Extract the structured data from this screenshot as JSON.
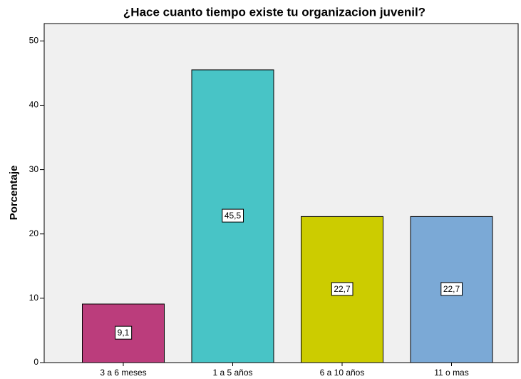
{
  "chart_data": {
    "type": "bar",
    "title": "¿Hace cuanto tiempo existe tu organizacion juvenil?",
    "y_label": "Porcentaje",
    "categories": [
      "3 a 6 meses",
      "1 a 5 años",
      "6 a 10 años",
      "11 o mas"
    ],
    "values": [
      9.1,
      45.5,
      22.7,
      22.7
    ],
    "value_labels": [
      "9,1",
      "45,5",
      "22,7",
      "22,7"
    ],
    "colors": [
      "#bb3d7c",
      "#48c4c6",
      "#cccc00",
      "#7ba9d6"
    ],
    "ylim": [
      0,
      52.7
    ],
    "yticks": [
      0,
      10,
      20,
      30,
      40,
      50
    ],
    "grid": false
  }
}
